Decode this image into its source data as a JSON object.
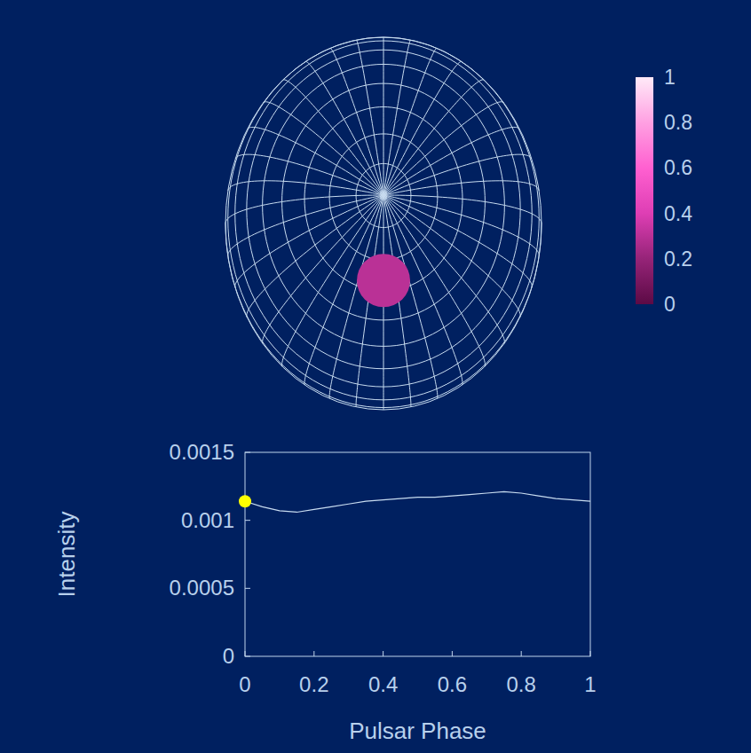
{
  "chart_data": {
    "type": "line",
    "x_label": "Pulsar Phase",
    "y_label": "Intensity",
    "x": [
      0,
      0.05,
      0.1,
      0.15,
      0.2,
      0.25,
      0.3,
      0.35,
      0.4,
      0.45,
      0.5,
      0.55,
      0.6,
      0.65,
      0.7,
      0.75,
      0.8,
      0.85,
      0.9,
      0.95,
      1
    ],
    "values": [
      0.00114,
      0.0011,
      0.00107,
      0.00106,
      0.00108,
      0.0011,
      0.00112,
      0.00114,
      0.00115,
      0.00116,
      0.00117,
      0.00117,
      0.00118,
      0.00119,
      0.0012,
      0.00121,
      0.0012,
      0.00118,
      0.00116,
      0.00115,
      0.00114
    ],
    "color": "#c8dcf0",
    "xlim": [
      0,
      1
    ],
    "xticks": [
      0,
      0.2,
      0.4,
      0.6,
      0.8,
      1
    ],
    "ylim": [
      0,
      0.0015
    ],
    "yticks": [
      0,
      0.0005,
      0.001,
      0.0015
    ],
    "current_phase": 0,
    "hot_spot": {
      "value": 0.3
    },
    "colorbar": {
      "range": [
        0,
        1
      ],
      "ticks": [
        0,
        0.2,
        0.4,
        0.6,
        0.8,
        1
      ]
    }
  }
}
